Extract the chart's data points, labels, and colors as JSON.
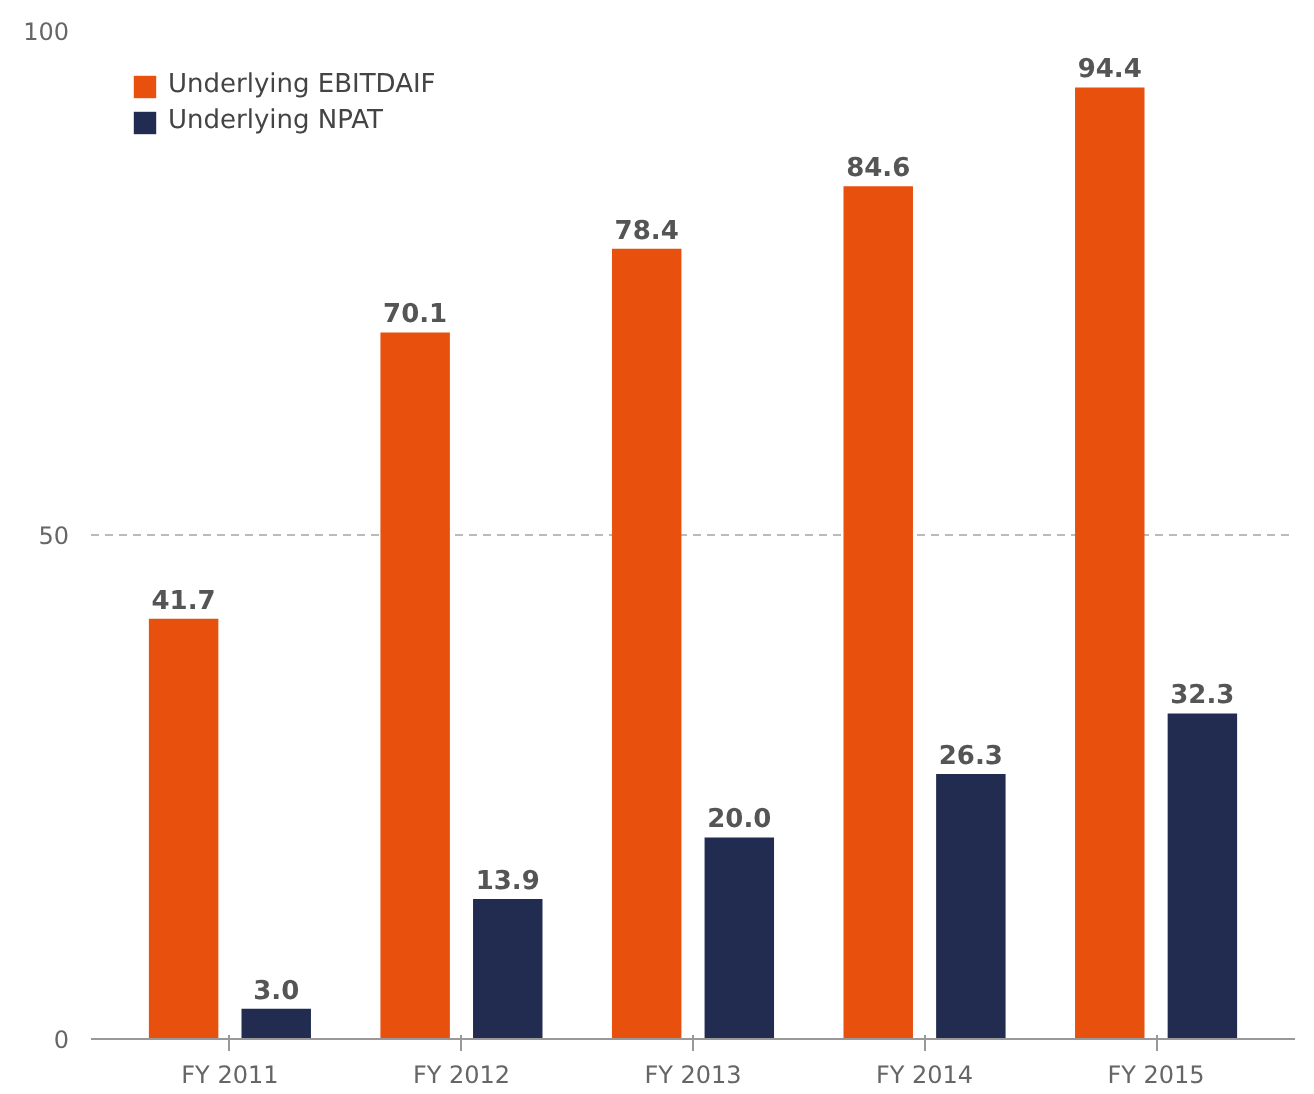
{
  "chart_data": {
    "type": "bar",
    "categories": [
      "FY 2011",
      "FY 2012",
      "FY 2013",
      "FY 2014",
      "FY 2015"
    ],
    "series": [
      {
        "name": "Underlying EBITDAIF",
        "color": "#e8500e",
        "values": [
          41.7,
          70.1,
          78.4,
          84.6,
          94.4
        ],
        "value_labels": [
          "41.7",
          "70.1",
          "78.4",
          "84.6",
          "94.4"
        ]
      },
      {
        "name": "Underlying NPAT",
        "color": "#222c50",
        "values": [
          3.0,
          13.9,
          20.0,
          26.3,
          32.3
        ],
        "value_labels": [
          "3.0",
          "13.9",
          "20.0",
          "26.3",
          "32.3"
        ]
      }
    ],
    "ylim": [
      0,
      100
    ],
    "yticks": [
      0,
      50,
      100
    ],
    "grid": "y",
    "legend": "top left"
  }
}
